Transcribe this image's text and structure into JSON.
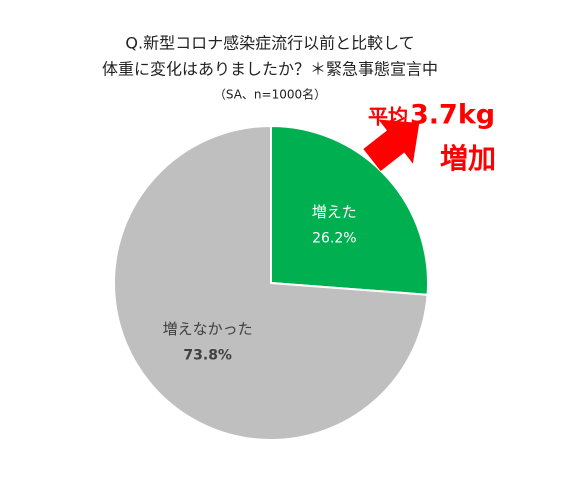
{
  "chart_data": {
    "type": "pie",
    "title": [
      "Q.新型コロナ感染症流行以前と比較して",
      "体重に変化はありましたか？＊緊急事態宣言中"
    ],
    "subtitle": "（SA、n=1000名）",
    "categories": [
      "増えた",
      "増えなかった"
    ],
    "values": [
      26.2,
      73.8
    ],
    "value_labels": [
      "26.2%",
      "73.8%"
    ],
    "colors": [
      "#00b050",
      "#bfbfbf"
    ],
    "annotation": {
      "prefix": "平均",
      "amount": "3.7kg",
      "suffix": "増加",
      "color": "#ff0000"
    }
  }
}
